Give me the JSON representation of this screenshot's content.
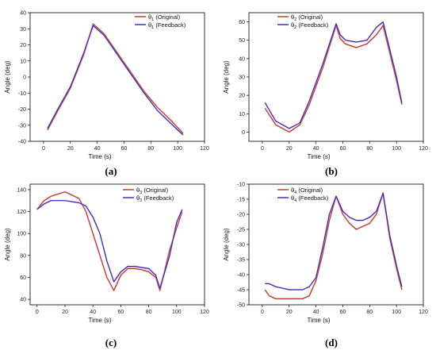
{
  "chart_data": [
    {
      "type": "line",
      "panel_label": "(a)",
      "xlabel": "Time (s)",
      "ylabel": "Angle (deg)",
      "xlim": [
        -10,
        120
      ],
      "ylim": [
        -40,
        40
      ],
      "xticks": [
        0,
        20,
        40,
        60,
        80,
        100,
        120
      ],
      "yticks": [
        -40,
        -30,
        -20,
        -10,
        0,
        10,
        20,
        30,
        40
      ],
      "legend_position": "top-right",
      "series": [
        {
          "name": "θ1 (Original)",
          "color": "#b03a1c",
          "x": [
            3,
            10,
            20,
            30,
            37,
            45,
            55,
            65,
            75,
            85,
            95,
            104
          ],
          "y": [
            -33,
            -22,
            -7,
            14,
            33,
            27,
            15,
            3,
            -9,
            -19,
            -27,
            -35
          ]
        },
        {
          "name": "θ1 (Feedback)",
          "color": "#2a2ab8",
          "x": [
            3,
            10,
            20,
            30,
            37,
            45,
            55,
            65,
            75,
            85,
            95,
            104
          ],
          "y": [
            -32,
            -21,
            -6,
            15,
            32,
            26,
            14,
            2,
            -10,
            -21,
            -29,
            -36
          ]
        }
      ]
    },
    {
      "type": "line",
      "panel_label": "(b)",
      "xlabel": "Time (s)",
      "ylabel": "Angle (deg)",
      "xlim": [
        -10,
        120
      ],
      "ylim": [
        -5,
        65
      ],
      "xticks": [
        0,
        20,
        40,
        60,
        80,
        100,
        120
      ],
      "yticks": [
        0,
        10,
        20,
        30,
        40,
        50,
        60
      ],
      "legend_position": "top-left",
      "series": [
        {
          "name": "θ2 (Original)",
          "color": "#b03a1c",
          "x": [
            2,
            10,
            20,
            28,
            35,
            45,
            55,
            58,
            62,
            70,
            78,
            85,
            90,
            100,
            104
          ],
          "y": [
            13,
            4,
            0,
            4,
            15,
            35,
            58,
            51,
            48,
            46,
            48,
            53,
            58,
            28,
            15
          ]
        },
        {
          "name": "θ2 (Feedback)",
          "color": "#2a2ab8",
          "x": [
            2,
            10,
            20,
            28,
            35,
            45,
            55,
            58,
            62,
            70,
            78,
            85,
            90,
            100,
            104
          ],
          "y": [
            16,
            6,
            2,
            5,
            17,
            37,
            59,
            53,
            50,
            49,
            50,
            57,
            60,
            30,
            16
          ]
        }
      ]
    },
    {
      "type": "line",
      "panel_label": "(c)",
      "xlabel": "Time (s)",
      "ylabel": "Angle (deg)",
      "xlim": [
        -5,
        120
      ],
      "ylim": [
        35,
        145
      ],
      "xticks": [
        0,
        20,
        40,
        60,
        80,
        100,
        120
      ],
      "yticks": [
        40,
        60,
        80,
        100,
        120,
        140
      ],
      "legend_position": "top-right",
      "series": [
        {
          "name": "θ3 (Original)",
          "color": "#b03a1c",
          "x": [
            0,
            5,
            10,
            20,
            30,
            35,
            40,
            45,
            50,
            55,
            60,
            65,
            70,
            75,
            80,
            85,
            88,
            95,
            100,
            104
          ],
          "y": [
            122,
            130,
            134,
            138,
            132,
            120,
            100,
            80,
            60,
            48,
            62,
            68,
            68,
            67,
            65,
            60,
            48,
            85,
            105,
            120
          ]
        },
        {
          "name": "θ3 (Feedback)",
          "color": "#2a2ab8",
          "x": [
            0,
            5,
            10,
            20,
            30,
            35,
            40,
            45,
            50,
            55,
            60,
            65,
            70,
            75,
            80,
            85,
            88,
            95,
            100,
            104
          ],
          "y": [
            122,
            127,
            130,
            130,
            128,
            125,
            115,
            100,
            75,
            56,
            65,
            70,
            70,
            69,
            68,
            62,
            50,
            80,
            110,
            122
          ]
        }
      ]
    },
    {
      "type": "line",
      "panel_label": "(d)",
      "xlabel": "Time (s)",
      "ylabel": "Angle (deg)",
      "xlim": [
        -10,
        120
      ],
      "ylim": [
        -50,
        -10
      ],
      "xticks": [
        0,
        20,
        40,
        60,
        80,
        100,
        120
      ],
      "yticks": [
        -50,
        -45,
        -40,
        -35,
        -30,
        -25,
        -20,
        -15,
        -10
      ],
      "legend_position": "top-left",
      "series": [
        {
          "name": "θ4 (Original)",
          "color": "#b03a1c",
          "x": [
            2,
            5,
            10,
            20,
            30,
            35,
            40,
            45,
            50,
            55,
            60,
            65,
            70,
            75,
            80,
            85,
            90,
            95,
            100,
            104
          ],
          "y": [
            -45,
            -47,
            -48,
            -48,
            -48,
            -47,
            -42,
            -33,
            -22,
            -14,
            -20,
            -23,
            -25,
            -24,
            -23,
            -20,
            -13,
            -28,
            -38,
            -45
          ]
        },
        {
          "name": "θ4 (Feedback)",
          "color": "#2a2ab8",
          "x": [
            2,
            5,
            10,
            20,
            30,
            35,
            40,
            45,
            50,
            55,
            60,
            65,
            70,
            75,
            80,
            85,
            90,
            95,
            100,
            104
          ],
          "y": [
            -43,
            -43,
            -44,
            -45,
            -45,
            -44,
            -41,
            -31,
            -20,
            -14,
            -19,
            -21,
            -22,
            -22,
            -21,
            -19,
            -13,
            -27,
            -37,
            -44
          ]
        }
      ]
    }
  ]
}
